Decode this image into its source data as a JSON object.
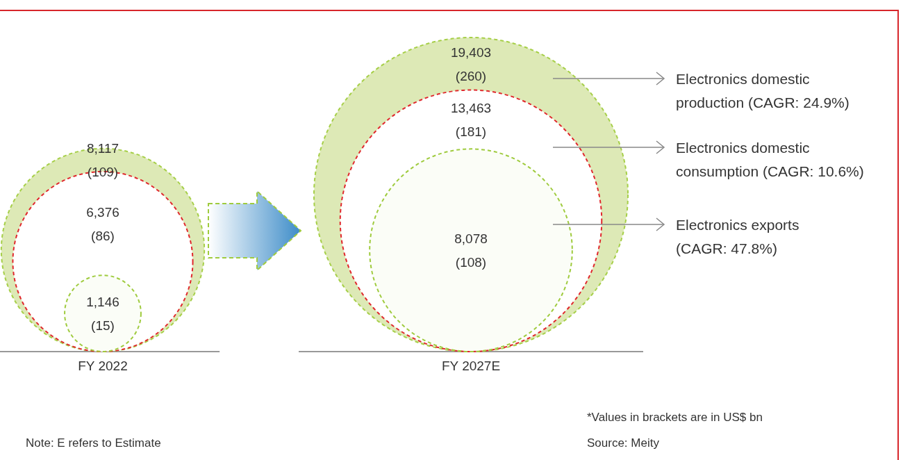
{
  "chart_data": {
    "type": "other",
    "categories": [
      "FY 2022",
      "FY 2027E"
    ],
    "series": [
      {
        "name": "Electronics domestic production (CAGR: 24.9%)",
        "color": "#dde9b6",
        "values": [
          8117,
          19403
        ],
        "value_labels": [
          "8,117\n(109)",
          "19,403\n(260)"
        ]
      },
      {
        "name": "Electronics domestic consumption (CAGR: 10.6%)",
        "color": "#e0282d",
        "values": [
          6376,
          13463
        ],
        "value_labels": [
          "6,376\n(86)",
          "13,463\n(181)"
        ]
      },
      {
        "name": "Electronics exports (CAGR: 47.8%)",
        "color": "#9fcb3e",
        "values": [
          1146,
          8078
        ],
        "value_labels": [
          "1,146\n(15)",
          "8,078\n(108)"
        ]
      }
    ],
    "legend": "right",
    "annotations": [
      "*Values in brackets are in US$ bn",
      "Note: E refers to Estimate",
      "Source: Meity"
    ]
  }
}
